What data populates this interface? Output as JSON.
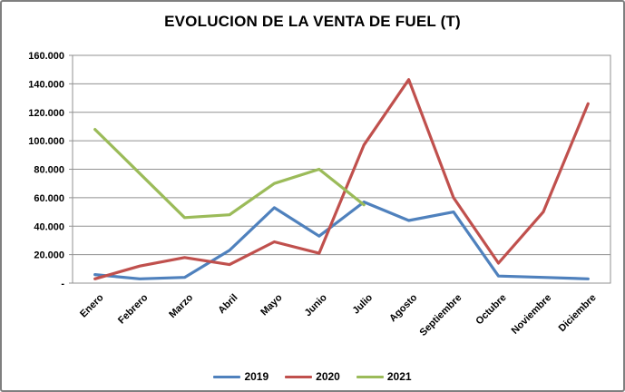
{
  "window": {
    "background": "#ffffff",
    "border_color": "#7f7f7f"
  },
  "colors": {
    "grid": "#919191",
    "plot_border": "#919191",
    "axis_text": "#000000"
  },
  "chart_data": {
    "type": "line",
    "title": "EVOLUCION DE LA VENTA DE FUEL (T)",
    "xlabel": "",
    "ylabel": "",
    "grid": true,
    "legend_position": "bottom",
    "ylim": [
      0,
      160000
    ],
    "ytick_step": 20000,
    "ytick_labels": [
      "-",
      "20.000",
      "40.000",
      "60.000",
      "80.000",
      "100.000",
      "120.000",
      "140.000",
      "160.000"
    ],
    "categories": [
      "Enero",
      "Febrero",
      "Marzo",
      "Abril",
      "Mayo",
      "Junio",
      "Julio",
      "Agosto",
      "Septiembre",
      "Octubre",
      "Noviembre",
      "Diciembre"
    ],
    "series": [
      {
        "name": "2019",
        "color": "#4F81BD",
        "values": [
          6000,
          3000,
          4000,
          23000,
          53000,
          33000,
          57000,
          44000,
          50000,
          5000,
          4000,
          3000
        ]
      },
      {
        "name": "2020",
        "color": "#C0504D",
        "values": [
          3000,
          12000,
          18000,
          13000,
          29000,
          21000,
          97000,
          143000,
          60000,
          14000,
          50000,
          126000
        ]
      },
      {
        "name": "2021",
        "color": "#9BBB59",
        "values": [
          108000,
          77000,
          46000,
          48000,
          70000,
          80000,
          55000,
          null,
          null,
          null,
          null,
          null
        ]
      }
    ]
  }
}
